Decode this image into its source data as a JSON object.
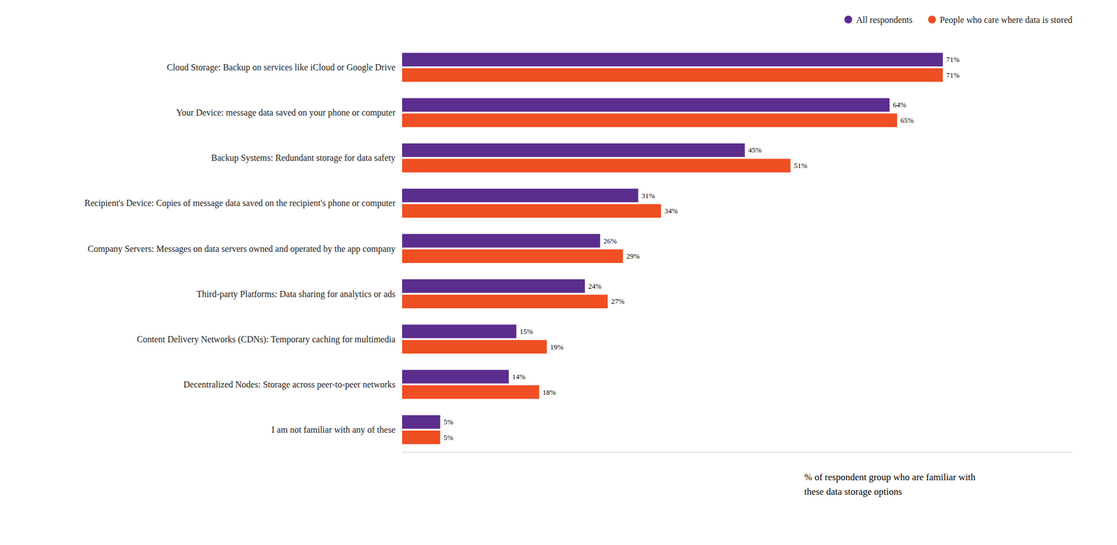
{
  "chart_data": {
    "type": "bar",
    "orientation": "horizontal",
    "categories": [
      "Cloud Storage: Backup on services like iCloud or Google Drive",
      "Your Device: message data saved on your phone or computer",
      "Backup Systems: Redundant storage for data safety",
      "Recipient's Device: Copies of message data saved on the recipient's phone or computer",
      "Company Servers: Messages on data servers owned and operated by the app company",
      "Third-party Platforms: Data sharing for analytics or ads",
      "Content Delivery Networks (CDNs): Temporary caching for multimedia",
      "Decentralized Nodes: Storage across peer-to-peer networks",
      "I am not familiar with any of these"
    ],
    "series": [
      {
        "name": "All respondents",
        "color": "#5b2d8e",
        "values": [
          71,
          64,
          45,
          31,
          26,
          24,
          15,
          14,
          5
        ],
        "value_labels": [
          "71%",
          "64%",
          "45%",
          "31%",
          "26%",
          "24%",
          "15%",
          "14%",
          "5%"
        ]
      },
      {
        "name": "People who care where data is stored",
        "color": "#f04e23",
        "values": [
          71,
          65,
          51,
          34,
          29,
          27,
          19,
          18,
          5
        ],
        "value_labels": [
          "71%",
          "65%",
          "51%",
          "34%",
          "29%",
          "27%",
          "19%",
          "18%",
          "5%"
        ]
      }
    ],
    "annotations": [
      "% of respondent group who are familiar with",
      "these data storage options"
    ],
    "xlim": [
      0,
      88
    ],
    "data_labels": true,
    "tick_labels": "y",
    "legend": "upper right",
    "grid": false
  }
}
